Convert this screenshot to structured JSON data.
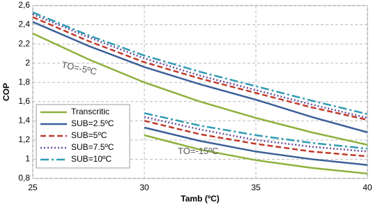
{
  "chart_data": {
    "type": "line",
    "x_label": "Tamb (ºC)",
    "y_label": "COP",
    "x": [
      25,
      27.5,
      30,
      32.5,
      35,
      37.5,
      40
    ],
    "xlim": [
      25,
      40
    ],
    "xticks": [
      25,
      30,
      35,
      40
    ],
    "ylim": [
      0.8,
      2.6
    ],
    "yticks": [
      {
        "value": 0.8,
        "label": "0,8"
      },
      {
        "value": 1,
        "label": "1"
      },
      {
        "value": 1.2,
        "label": "1,2"
      },
      {
        "value": 1.4,
        "label": "1,4"
      },
      {
        "value": 1.6,
        "label": "1,6"
      },
      {
        "value": 1.8,
        "label": "1,8"
      },
      {
        "value": 2,
        "label": "2"
      },
      {
        "value": 2.2,
        "label": "2,2"
      },
      {
        "value": 2.4,
        "label": "2,4"
      },
      {
        "value": 2.6,
        "label": "2,6"
      }
    ],
    "grid": true,
    "legend": "lower left",
    "annotations": [
      {
        "text": "TO=-5ºC",
        "x": 26.3,
        "y": 1.98
      },
      {
        "text": "TO=-15ºC",
        "x": 31.5,
        "y": 1.08
      }
    ],
    "series": [
      {
        "name": "Transcritic",
        "color": "#8db03c",
        "dash": "solid",
        "values": [
          2.31,
          2.04,
          1.8,
          1.6,
          1.43,
          1.28,
          1.15
        ],
        "values_low": [
          null,
          null,
          1.25,
          1.1,
          0.99,
          0.91,
          0.85
        ]
      },
      {
        "name": "SUB=2.5ºC",
        "color": "#3b5f99",
        "dash": "solid",
        "values": [
          2.43,
          2.18,
          1.96,
          1.78,
          1.62,
          1.44,
          1.28
        ],
        "values_low": [
          null,
          null,
          1.33,
          1.19,
          1.08,
          1.0,
          0.94
        ]
      },
      {
        "name": "SUB=5ºC",
        "color": "#c0392b",
        "dash": "dashed",
        "values": [
          2.48,
          2.23,
          2.01,
          1.84,
          1.69,
          1.54,
          1.41
        ],
        "values_low": [
          null,
          null,
          1.4,
          1.26,
          1.16,
          1.08,
          1.03
        ]
      },
      {
        "name": "SUB=7.5ºC",
        "color": "#6a4c9c",
        "dash": "dotted",
        "values": [
          2.51,
          2.27,
          2.05,
          1.87,
          1.72,
          1.57,
          1.43
        ],
        "values_low": [
          null,
          null,
          1.44,
          1.31,
          1.2,
          1.13,
          1.08
        ]
      },
      {
        "name": "SUB=10ºC",
        "color": "#2e9bb3",
        "dash": "dashdot",
        "values": [
          2.53,
          2.29,
          2.08,
          1.91,
          1.76,
          1.61,
          1.47
        ],
        "values_low": [
          null,
          null,
          1.48,
          1.35,
          1.25,
          1.17,
          1.11
        ]
      }
    ]
  }
}
